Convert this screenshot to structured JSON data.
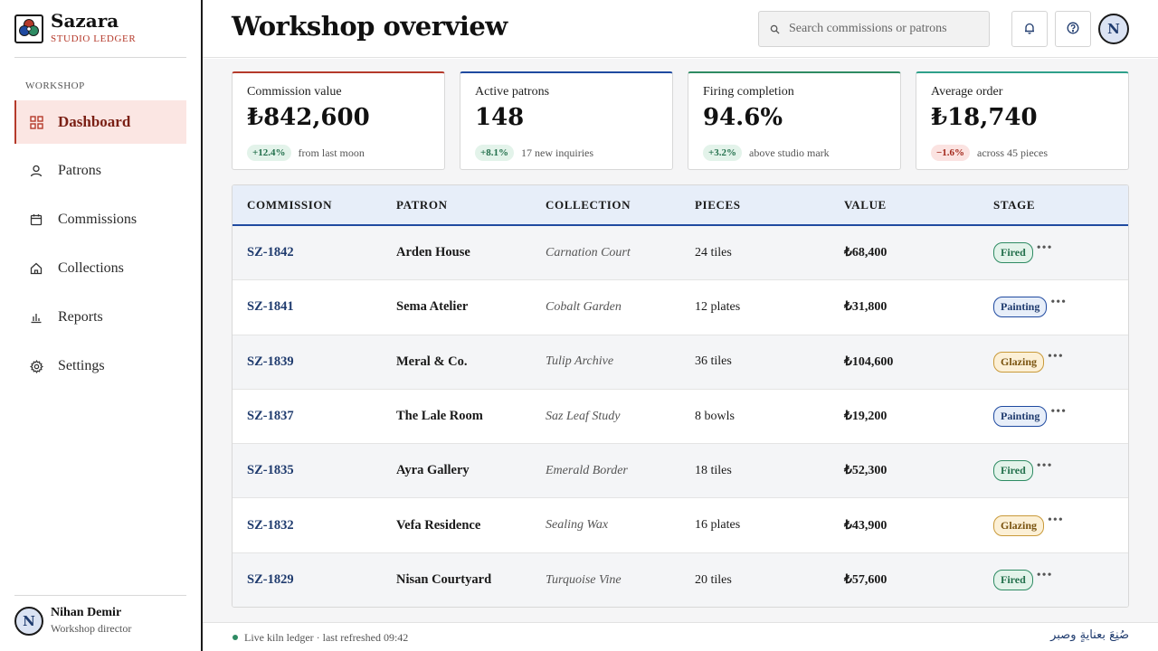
{
  "brand": {
    "name": "Sazara",
    "subtitle": "STUDIO LEDGER"
  },
  "sidebar": {
    "section": "WORKSHOP",
    "items": [
      {
        "label": "Dashboard",
        "icon": "grid-icon",
        "active": true
      },
      {
        "label": "Patrons",
        "icon": "user-icon"
      },
      {
        "label": "Commissions",
        "icon": "calendar-icon"
      },
      {
        "label": "Collections",
        "icon": "home-icon"
      },
      {
        "label": "Reports",
        "icon": "bar-chart-icon"
      },
      {
        "label": "Settings",
        "icon": "gear-icon"
      }
    ],
    "user": {
      "initial": "N",
      "name": "Nihan Demir",
      "role": "Workshop director"
    }
  },
  "header": {
    "title": "Workshop overview",
    "search_placeholder": "Search commissions or patrons",
    "avatar_initial": "N"
  },
  "kpis": [
    {
      "label": "Commission value",
      "value": "₺842,600",
      "change": "+12.4%",
      "note": "from last moon",
      "accent": "#b53a2b"
    },
    {
      "label": "Active patrons",
      "value": "148",
      "change": "+8.1%",
      "note": "17 new inquiries",
      "accent": "#1f4aa0"
    },
    {
      "label": "Firing completion",
      "value": "94.6%",
      "change": "+3.2%",
      "note": "above studio mark",
      "accent": "#2e8b63"
    },
    {
      "label": "Average order",
      "value": "₺18,740",
      "change": "−1.6%",
      "note": "across 45 pieces",
      "accent": "#2ea08a"
    }
  ],
  "table": {
    "columns": [
      "COMMISSION",
      "PATRON",
      "COLLECTION",
      "PIECES",
      "VALUE",
      "STAGE"
    ],
    "rows": [
      {
        "id": "SZ-1842",
        "patron": "Arden House",
        "collection": "Carnation Court",
        "pieces": "24 tiles",
        "value": "₺68,400",
        "stage": "Fired"
      },
      {
        "id": "SZ-1841",
        "patron": "Sema Atelier",
        "collection": "Cobalt Garden",
        "pieces": "12 plates",
        "value": "₺31,800",
        "stage": "Painting"
      },
      {
        "id": "SZ-1839",
        "patron": "Meral & Co.",
        "collection": "Tulip Archive",
        "pieces": "36 tiles",
        "value": "₺104,600",
        "stage": "Glazing"
      },
      {
        "id": "SZ-1837",
        "patron": "The Lale Room",
        "collection": "Saz Leaf Study",
        "pieces": "8 bowls",
        "value": "₺19,200",
        "stage": "Painting"
      },
      {
        "id": "SZ-1835",
        "patron": "Ayra Gallery",
        "collection": "Emerald Border",
        "pieces": "18 tiles",
        "value": "₺52,300",
        "stage": "Fired"
      },
      {
        "id": "SZ-1832",
        "patron": "Vefa Residence",
        "collection": "Sealing Wax",
        "pieces": "16 plates",
        "value": "₺43,900",
        "stage": "Glazing"
      },
      {
        "id": "SZ-1829",
        "patron": "Nisan Courtyard",
        "collection": "Turquoise Vine",
        "pieces": "20 tiles",
        "value": "₺57,600",
        "stage": "Fired"
      }
    ]
  },
  "footer": {
    "status": "Live kiln ledger · last refreshed 09:42",
    "motto": "صُنِعَ بعنايةٍ وصبر"
  }
}
